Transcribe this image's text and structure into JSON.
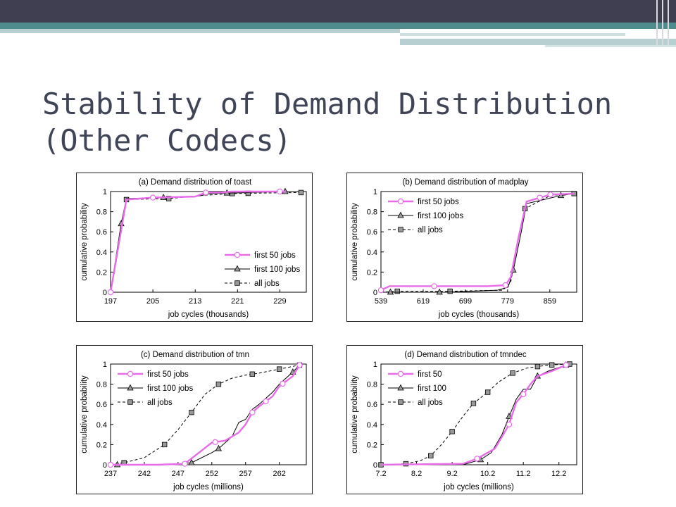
{
  "slide": {
    "title_line1": "Stability of Demand Distribution",
    "title_line2": "(Other Codecs)"
  },
  "colors": {
    "header_bar": "#3f3f51",
    "accent_teal": "#4e8c8e",
    "title_text": "#3f4556",
    "series_first50": "#e86be8",
    "series_first100": "#000000",
    "series_all": "#000000",
    "marker_square_fill": "#999999",
    "marker_triangle_fill": "#999999"
  },
  "chart_data": [
    {
      "type": "line",
      "title": "(a) Demand distribution of toast",
      "xlabel": "job cycles (thousands)",
      "ylabel": "cumulative probability",
      "xlim": [
        197,
        234
      ],
      "ylim": [
        0,
        1
      ],
      "xticks": [
        "197",
        "205",
        "213",
        "221",
        "229"
      ],
      "yticks": [
        "0",
        "0.2",
        "0.4",
        "0.6",
        "0.8",
        "1"
      ],
      "grid": false,
      "legend_position": "bottom-right",
      "series": [
        {
          "name": "first 50 jobs",
          "style": "solid-pink-circle",
          "x": [
            197,
            200,
            205,
            213,
            215,
            218,
            220,
            229,
            230
          ],
          "y": [
            0,
            0.92,
            0.94,
            0.95,
            0.99,
            0.99,
            1.0,
            1.0,
            1.0
          ],
          "markers_x": [
            197,
            205,
            215,
            229
          ]
        },
        {
          "name": "first 100 jobs",
          "style": "solid-black-triangle",
          "x": [
            197,
            199,
            200,
            213,
            216,
            230
          ],
          "y": [
            0,
            0.68,
            0.93,
            0.95,
            0.98,
            1.0
          ],
          "markers_x": [
            199,
            207,
            219,
            230
          ]
        },
        {
          "name": "all jobs",
          "style": "dashed-black-square",
          "x": [
            197,
            200,
            208,
            214,
            220,
            226,
            233
          ],
          "y": [
            0,
            0.92,
            0.93,
            0.96,
            0.98,
            0.985,
            0.99
          ],
          "markers_x": [
            200,
            208,
            220,
            223,
            233
          ]
        }
      ]
    },
    {
      "type": "line",
      "title": "(b) Demand distribution of madplay",
      "xlabel": "job cycles (thousands)",
      "ylabel": "cumulative probability",
      "xlim": [
        539,
        910
      ],
      "ylim": [
        0,
        1
      ],
      "xticks": [
        "539",
        "619",
        "699",
        "779",
        "859"
      ],
      "yticks": [
        "0",
        "0.2",
        "0.4",
        "0.6",
        "0.8",
        "1"
      ],
      "grid": false,
      "legend_position": "top-left",
      "series": [
        {
          "name": "first 50 jobs",
          "style": "solid-pink-circle",
          "x": [
            539,
            555,
            640,
            740,
            775,
            785,
            800,
            815,
            860,
            905
          ],
          "y": [
            0.02,
            0.06,
            0.06,
            0.06,
            0.07,
            0.15,
            0.55,
            0.9,
            0.97,
            0.98
          ],
          "markers_x": [
            539,
            640,
            775,
            840,
            860
          ]
        },
        {
          "name": "first 100 jobs",
          "style": "solid-black-triangle",
          "x": [
            539,
            557,
            660,
            760,
            780,
            790,
            805,
            815,
            880,
            905
          ],
          "y": [
            0,
            0,
            0,
            0.02,
            0.05,
            0.22,
            0.6,
            0.88,
            0.96,
            0.98
          ],
          "markers_x": [
            557,
            650,
            790,
            880
          ]
        },
        {
          "name": "all jobs",
          "style": "dashed-black-square",
          "x": [
            539,
            570,
            670,
            770,
            785,
            800,
            812,
            860,
            905
          ],
          "y": [
            0,
            0.01,
            0.01,
            0.02,
            0.1,
            0.55,
            0.83,
            0.96,
            0.98
          ],
          "markers_x": [
            570,
            670,
            812,
            905
          ]
        }
      ]
    },
    {
      "type": "line",
      "title": "(c) Demand distribution of tmn",
      "xlabel": "job cycles (millions)",
      "ylabel": "cumulative probability",
      "xlim": [
        237,
        266
      ],
      "ylim": [
        0,
        1
      ],
      "xticks": [
        "237",
        "242",
        "247",
        "252",
        "257",
        "262"
      ],
      "yticks": [
        "0",
        "0.2",
        "0.4",
        "0.6",
        "0.8",
        "1"
      ],
      "grid": false,
      "legend_position": "top-left",
      "series": [
        {
          "name": "first 50 jobs",
          "style": "solid-pink-circle",
          "x": [
            237,
            244,
            248,
            252,
            254,
            256,
            257,
            258,
            259,
            261,
            262,
            264,
            265
          ],
          "y": [
            0,
            0,
            0.01,
            0.22,
            0.24,
            0.32,
            0.4,
            0.52,
            0.58,
            0.68,
            0.78,
            0.88,
            0.99
          ],
          "markers_x": [
            237,
            248,
            252.5,
            258,
            260,
            262.5,
            265
          ]
        },
        {
          "name": "first 100 jobs",
          "style": "solid-black-triangle",
          "x": [
            238,
            246,
            249,
            252,
            253,
            255,
            256,
            257,
            258,
            259,
            261,
            262,
            264,
            265
          ],
          "y": [
            0,
            0,
            0.02,
            0.12,
            0.16,
            0.28,
            0.42,
            0.45,
            0.55,
            0.6,
            0.72,
            0.8,
            0.92,
            0.99
          ],
          "markers_x": [
            238,
            249,
            253,
            264
          ]
        },
        {
          "name": "all jobs",
          "style": "dashed-black-square",
          "x": [
            237,
            239,
            242,
            245,
            247,
            249,
            251,
            253,
            255,
            257,
            259,
            262,
            265
          ],
          "y": [
            0,
            0.02,
            0.07,
            0.2,
            0.35,
            0.52,
            0.7,
            0.8,
            0.86,
            0.89,
            0.91,
            0.95,
            0.99
          ],
          "markers_x": [
            239,
            245,
            249,
            253,
            258,
            262,
            265
          ]
        }
      ]
    },
    {
      "type": "line",
      "title": "(d) Demand distribution of tmndec",
      "xlabel": "job cycles (millions)",
      "ylabel": "cumulative probability",
      "xlim": [
        7.2,
        12.7
      ],
      "ylim": [
        0,
        1
      ],
      "xticks": [
        "7.2",
        "8.2",
        "9.2",
        "10.2",
        "11.2",
        "12.2"
      ],
      "yticks": [
        "0",
        "0.2",
        "0.4",
        "0.6",
        "0.8",
        "1"
      ],
      "grid": false,
      "legend_position": "top-left",
      "series": [
        {
          "name": "first 50",
          "style": "solid-pink-circle",
          "x": [
            7.2,
            9.5,
            9.9,
            10.2,
            10.4,
            10.6,
            10.8,
            11.0,
            11.2,
            11.4,
            11.6,
            12.0,
            12.4
          ],
          "y": [
            0,
            0.01,
            0.06,
            0.12,
            0.16,
            0.28,
            0.4,
            0.62,
            0.7,
            0.8,
            0.88,
            0.93,
            0.99
          ],
          "markers_x": [
            9.9,
            10.8,
            11.2,
            12.4
          ]
        },
        {
          "name": "first 100",
          "style": "solid-black-triangle",
          "x": [
            7.2,
            9.5,
            10.0,
            10.3,
            10.6,
            10.8,
            11.0,
            11.2,
            11.4,
            11.6,
            11.9,
            12.4
          ],
          "y": [
            0,
            0,
            0.05,
            0.12,
            0.3,
            0.48,
            0.65,
            0.75,
            0.75,
            0.88,
            0.93,
            0.99
          ],
          "markers_x": [
            10.0,
            10.8,
            11.6,
            12.4
          ]
        },
        {
          "name": "all jobs",
          "style": "dashed-black-square",
          "x": [
            7.2,
            7.9,
            8.3,
            8.6,
            8.9,
            9.2,
            9.5,
            9.8,
            10.2,
            10.5,
            10.9,
            11.3,
            11.9,
            12.5
          ],
          "y": [
            0,
            0.01,
            0.04,
            0.09,
            0.2,
            0.33,
            0.48,
            0.61,
            0.72,
            0.82,
            0.91,
            0.96,
            0.99,
            1.0
          ],
          "markers_x": [
            7.2,
            7.9,
            8.6,
            9.2,
            9.8,
            10.2,
            10.9,
            11.6,
            12.0,
            12.5
          ]
        }
      ]
    }
  ]
}
